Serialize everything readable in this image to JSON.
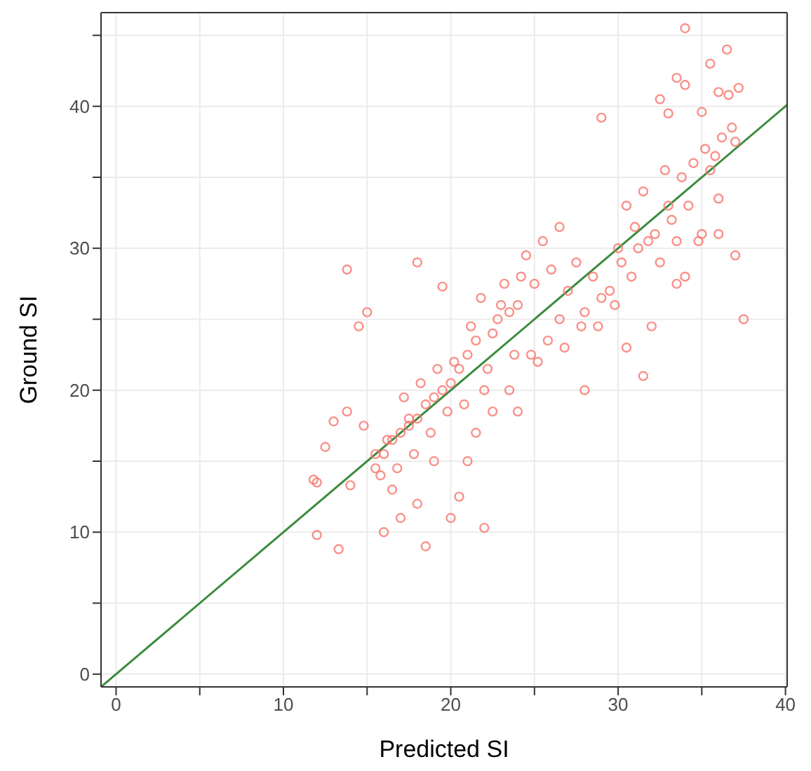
{
  "chart_data": {
    "type": "scatter",
    "xlabel": "Predicted SI",
    "ylabel": "Ground SI",
    "xlim": [
      -0.9,
      40.1
    ],
    "ylim": [
      -0.9,
      46.6
    ],
    "xticks": [
      0,
      {
        "value": 5,
        "label": null
      },
      10,
      {
        "value": 15,
        "label": null
      },
      20,
      {
        "value": 25,
        "label": null
      },
      30,
      {
        "value": 35,
        "label": null
      },
      40
    ],
    "yticks": [
      0,
      {
        "value": 5,
        "label": null
      },
      10,
      {
        "value": 15,
        "label": null
      },
      20,
      {
        "value": 25,
        "label": null
      },
      30,
      {
        "value": 35,
        "label": null
      },
      40,
      {
        "value": 45,
        "label": null
      }
    ],
    "grid": true,
    "series": [
      {
        "color": "#f8766d",
        "marker": "circle",
        "x": [
          34,
          36.5,
          35.5,
          33.5,
          34,
          32.5,
          36,
          36.6,
          37.2,
          33,
          35,
          29,
          37,
          37.5,
          36,
          32,
          33.5,
          18,
          14.5,
          19.5,
          22,
          18.5,
          13.3,
          12,
          16,
          20,
          12,
          12.5,
          13,
          13.8,
          14.8,
          15.5,
          14,
          16.5,
          17,
          20.5,
          11.8,
          35.2,
          34.5,
          36.2,
          33.8,
          32.8,
          31.5,
          30.5,
          31,
          33,
          35.5,
          36.8,
          34.8,
          30,
          31.8,
          29.5,
          28.5,
          27.5,
          26,
          25,
          24,
          23.5,
          22.5,
          21.5,
          21,
          20.5,
          20,
          19.5,
          19,
          18.5,
          18,
          17.5,
          17,
          16.5,
          16,
          15.5,
          21.8,
          22.8,
          23.2,
          24.5,
          25.5,
          26.5,
          27,
          28,
          29,
          30.2,
          31.2,
          32.2,
          33.2,
          34.2,
          35.8,
          24.8,
          23.8,
          22,
          20.8,
          19.8,
          18.8,
          17.8,
          16.8,
          15.8,
          21.2,
          22.2,
          23,
          24.2,
          25.8,
          26.8,
          19.2,
          18.2,
          17.2,
          20.2,
          21.5,
          19,
          17.5,
          16.2,
          22.5,
          23.5,
          25.2,
          27.8,
          28.8,
          29.8,
          30.8,
          32.5,
          34,
          35,
          36,
          37,
          33.5,
          30.5,
          28,
          24,
          21,
          18,
          15,
          13.8,
          26.5,
          31.5
        ],
        "values": [
          45.5,
          44,
          43,
          42,
          41.5,
          40.5,
          41,
          40.8,
          41.3,
          39.5,
          39.6,
          39.2,
          37.5,
          25,
          33.5,
          24.5,
          27.5,
          29,
          24.5,
          27.3,
          10.3,
          9,
          8.8,
          9.8,
          10,
          11,
          13.5,
          16,
          17.8,
          18.5,
          17.5,
          15.5,
          13.3,
          13,
          11,
          12.5,
          13.7,
          37,
          36,
          37.8,
          35,
          35.5,
          34,
          33,
          31.5,
          33,
          35.5,
          38.5,
          30.5,
          30,
          30.5,
          27,
          28,
          29,
          28.5,
          27.5,
          26,
          25.5,
          24,
          23.5,
          22.5,
          21.5,
          20.5,
          20,
          19.5,
          19,
          18,
          17.5,
          17,
          16.5,
          15.5,
          14.5,
          26.5,
          25,
          27.5,
          29.5,
          30.5,
          31.5,
          27,
          25.5,
          26.5,
          29,
          30,
          31,
          32,
          33,
          36.5,
          22.5,
          22.5,
          20,
          19,
          18.5,
          17,
          15.5,
          14.5,
          14,
          24.5,
          21.5,
          26,
          28,
          23.5,
          23,
          21.5,
          20.5,
          19.5,
          22,
          17,
          15,
          18,
          16.5,
          18.5,
          20,
          22,
          24.5,
          24.5,
          26,
          28,
          29,
          28,
          31,
          31,
          29.5,
          30.5,
          23,
          20,
          18.5,
          15,
          12,
          25.5,
          28.5,
          25,
          21
        ]
      },
      {
        "type": "line",
        "color": "#3d8b3d",
        "marker": "none",
        "x": [
          -0.9,
          40.1
        ],
        "values": [
          -0.9,
          40.1
        ]
      }
    ]
  }
}
